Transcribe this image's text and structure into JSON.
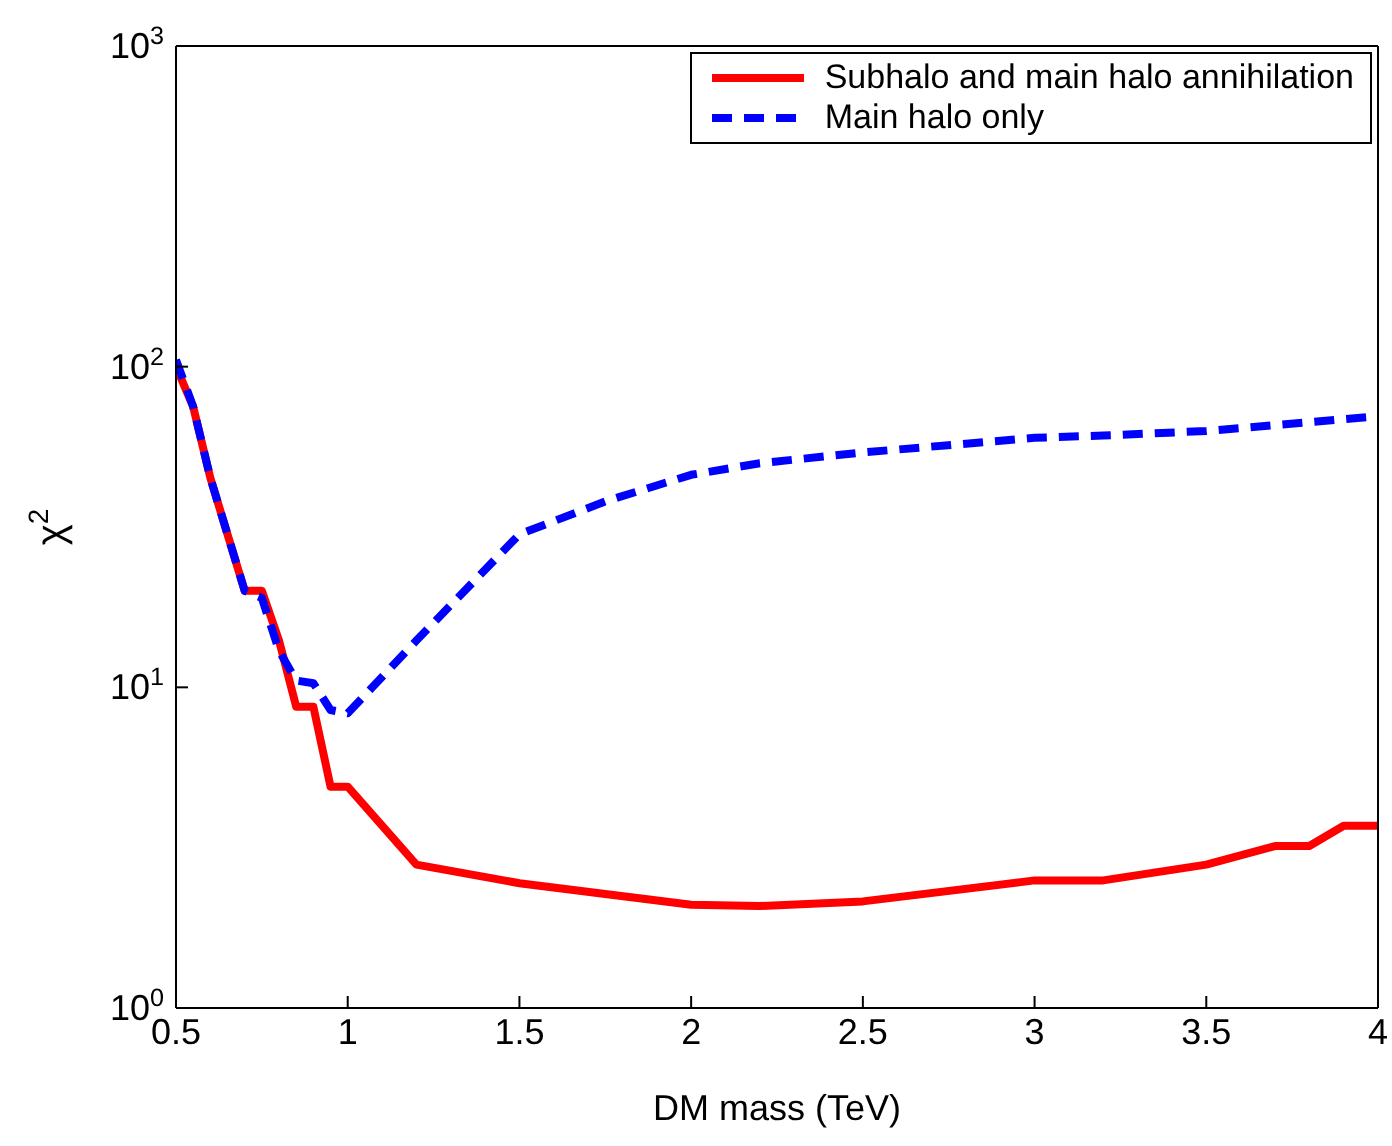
{
  "chart_data": {
    "type": "line",
    "xlabel": "DM mass (TeV)",
    "ylabel": "χ$^{2}$",
    "log": "y",
    "xlim": [
      0.5,
      4
    ],
    "xticks": [
      0.5,
      1,
      1.5,
      2,
      2.5,
      3,
      3.5,
      4
    ],
    "ylim": [
      1,
      1000
    ],
    "yticks": [
      {
        "value": 1,
        "label": "10$^{0}$"
      },
      {
        "value": 10,
        "label": "10$^{1}$"
      },
      {
        "value": 100,
        "label": "10$^{2}$"
      },
      {
        "value": 1000,
        "label": "10$^{3}$"
      }
    ],
    "legend": "top right",
    "marker": "none",
    "series": [
      {
        "name": "Subhalo and main halo annihilation",
        "color": "#ff0000",
        "line_style": "solid",
        "x": [
          0.5,
          0.55,
          0.6,
          0.7,
          0.75,
          0.8,
          0.85,
          0.9,
          0.95,
          1.0,
          1.2,
          1.5,
          2,
          2.2,
          2.5,
          3,
          3.2,
          3.5,
          3.7,
          3.8,
          3.9,
          4
        ],
        "values": [
          100,
          75,
          45,
          20,
          20,
          14,
          8.7,
          8.7,
          4.9,
          4.9,
          2.8,
          2.45,
          2.1,
          2.08,
          2.15,
          2.5,
          2.5,
          2.8,
          3.2,
          3.2,
          3.7,
          3.7
        ]
      },
      {
        "name": "Main halo only",
        "color": "#0000ff",
        "line_style": "dashed",
        "x": [
          0.5,
          0.55,
          0.6,
          0.7,
          0.75,
          0.8,
          0.85,
          0.9,
          0.95,
          1.0,
          1.2,
          1.5,
          1.75,
          2,
          2.2,
          2.5,
          3,
          3.2,
          3.5,
          4
        ],
        "values": [
          105,
          75,
          45,
          20,
          19,
          13,
          10.5,
          10.3,
          8.5,
          8.3,
          14,
          30,
          38,
          46,
          50,
          54,
          60,
          61,
          63,
          70
        ]
      }
    ]
  }
}
